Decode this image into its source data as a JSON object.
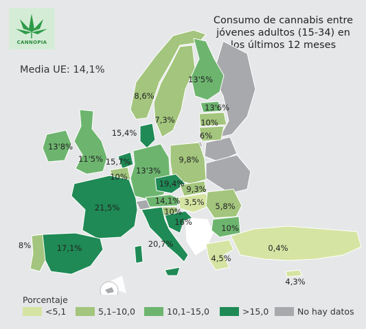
{
  "logo": {
    "text": "CANNOPIA"
  },
  "title": {
    "line1": "Consumo de cannabis entre",
    "line2": "jóvenes adultos (15-34) en",
    "line3": "los últimos 12 meses"
  },
  "eu_mean": "Media UE: 14,1%",
  "colors": {
    "lt5": "#d6e4a3",
    "c5_10": "#a3c57d",
    "c10_15": "#6db56f",
    "gt15": "#1f8a55",
    "nodata": "#a7a9ac",
    "background": "#e6e7e8",
    "border": "#ffffff"
  },
  "map_values": [
    {
      "country": "Noruega",
      "label": "8,6%",
      "class": "c5_10"
    },
    {
      "country": "Suecia",
      "label": "7,3%",
      "class": "c5_10"
    },
    {
      "country": "Finlandia",
      "label": "13'5%",
      "class": "c10_15"
    },
    {
      "country": "Estonia",
      "label": "13'6%",
      "class": "c10_15"
    },
    {
      "country": "Letonia",
      "label": "10%",
      "class": "c5_10"
    },
    {
      "country": "Lituania",
      "label": "6%",
      "class": "c5_10"
    },
    {
      "country": "Dinamarca",
      "label": "15,4%",
      "class": "gt15"
    },
    {
      "country": "Irlanda",
      "label": "13'8%",
      "class": "c10_15"
    },
    {
      "country": "Reino Unido",
      "label": "11'5%",
      "class": "c10_15"
    },
    {
      "country": "Países Bajos",
      "label": "15,7%",
      "class": "gt15"
    },
    {
      "country": "Bélgica",
      "label": "10%",
      "class": "c5_10"
    },
    {
      "country": "Alemania",
      "label": "13'3%",
      "class": "c10_15"
    },
    {
      "country": "Polonia",
      "label": "9,8%",
      "class": "c5_10"
    },
    {
      "country": "República Checa",
      "label": "19,4%",
      "class": "gt15"
    },
    {
      "country": "Eslovaquia",
      "label": "9,3%",
      "class": "c5_10"
    },
    {
      "country": "Austria",
      "label": "14,1%",
      "class": "c10_15"
    },
    {
      "country": "Hungría",
      "label": "3,5%",
      "class": "lt5"
    },
    {
      "country": "Eslovenia",
      "label": "10%",
      "class": "c5_10"
    },
    {
      "country": "Croacia",
      "label": "16%",
      "class": "gt15"
    },
    {
      "country": "Rumanía",
      "label": "5,8%",
      "class": "c5_10"
    },
    {
      "country": "Bulgaria",
      "label": "10%",
      "class": "c5_10"
    },
    {
      "country": "Francia",
      "label": "21,5%",
      "class": "gt15"
    },
    {
      "country": "España",
      "label": "17,1%",
      "class": "gt15"
    },
    {
      "country": "Portugal",
      "label": "8%",
      "class": "c5_10"
    },
    {
      "country": "Italia",
      "label": "20,7%",
      "class": "gt15"
    },
    {
      "country": "Grecia",
      "label": "4,5%",
      "class": "lt5"
    },
    {
      "country": "Turquía",
      "label": "0,4%",
      "class": "lt5"
    },
    {
      "country": "Chipre",
      "label": "4,3%",
      "class": "lt5"
    }
  ],
  "legend": {
    "title": "Porcentaje",
    "items": [
      {
        "label": "<5,1",
        "color": "#d6e4a3"
      },
      {
        "label": "5,1–10,0",
        "color": "#a3c57d"
      },
      {
        "label": "10,1–15,0",
        "color": "#6db56f"
      },
      {
        "label": ">15,0",
        "color": "#1f8a55"
      },
      {
        "label": "No hay datos",
        "color": "#a7a9ac"
      }
    ]
  }
}
